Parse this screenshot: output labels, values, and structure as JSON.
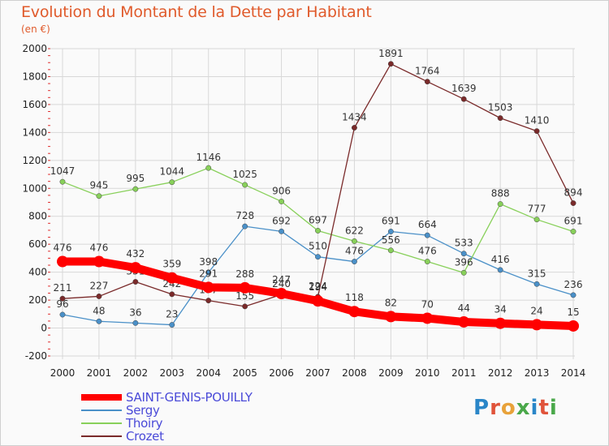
{
  "header": {
    "title": "Evolution du Montant de la Dette par Habitant",
    "subtitle": "(en €)"
  },
  "logo": {
    "text": "Proxiti",
    "colors": [
      "#2a86c8",
      "#e0533a",
      "#e8a23a",
      "#4aa84a",
      "#2a86c8",
      "#e0533a",
      "#4aa84a"
    ]
  },
  "chart_data": {
    "type": "line",
    "title": "Evolution du Montant de la Dette par Habitant",
    "ylabel": "(en €)",
    "xlabel": "",
    "ylim": [
      -200,
      2000
    ],
    "y_ticks": [
      -200,
      0,
      200,
      400,
      600,
      800,
      1000,
      1200,
      1400,
      1600,
      1800,
      2000
    ],
    "x": [
      "2000",
      "2001",
      "2002",
      "2003",
      "2004",
      "2005",
      "2006",
      "2007",
      "2008",
      "2009",
      "2010",
      "2011",
      "2012",
      "2013",
      "2014"
    ],
    "grid": true,
    "legend_position": "bottom-left",
    "series": [
      {
        "name": "SAINT-GENIS-POUILLY",
        "color": "#ff0000",
        "emphasized": true,
        "values": [
          476,
          476,
          432,
          359,
          291,
          288,
          247,
          194,
          118,
          82,
          70,
          44,
          34,
          24,
          15
        ]
      },
      {
        "name": "Sergy",
        "color": "#4a90c8",
        "values": [
          96,
          48,
          36,
          23,
          398,
          728,
          692,
          510,
          476,
          691,
          664,
          533,
          416,
          315,
          236
        ]
      },
      {
        "name": "Thoiry",
        "color": "#88d05a",
        "values": [
          1047,
          945,
          995,
          1044,
          1146,
          1025,
          906,
          697,
          622,
          556,
          476,
          396,
          888,
          777,
          691
        ]
      },
      {
        "name": "Crozet",
        "color": "#7a2a2a",
        "values": [
          211,
          227,
          331,
          242,
          197,
          155,
          240,
          224,
          1434,
          1891,
          1764,
          1639,
          1503,
          1410,
          894
        ]
      }
    ]
  }
}
